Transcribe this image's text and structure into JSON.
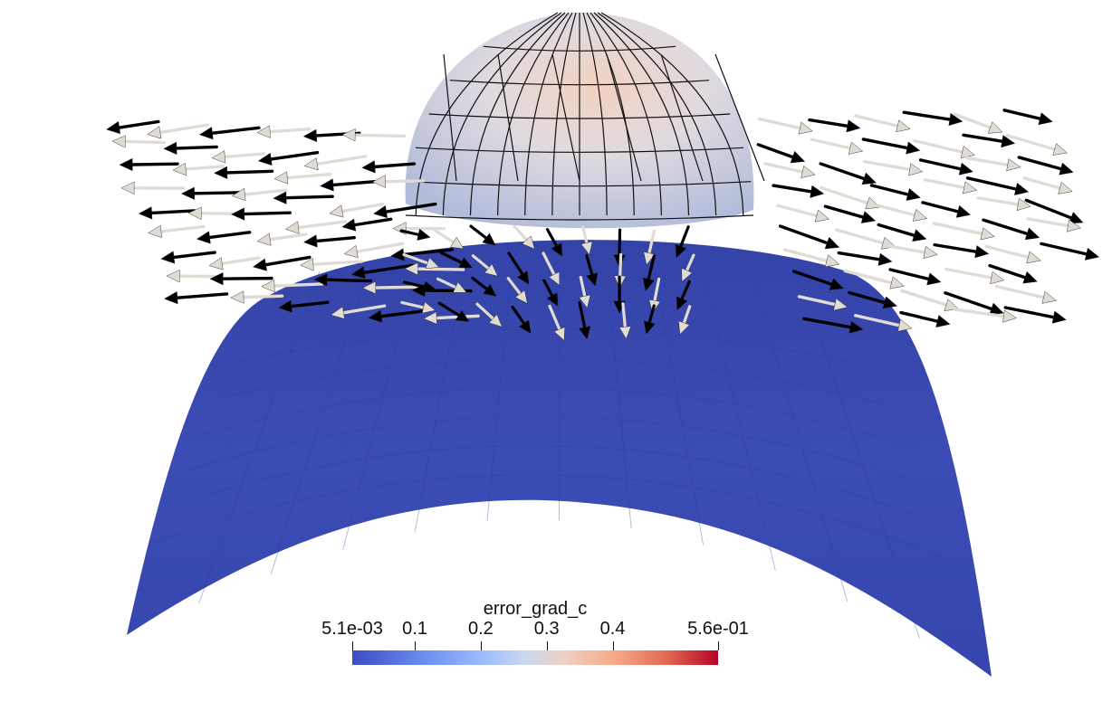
{
  "scene": {
    "surface_color": "#3b4aae",
    "sphere_mesh_color": "#000000",
    "glyph_colors": [
      "#000000",
      "#e0dcd4"
    ]
  },
  "colorbar": {
    "title": "error_grad_c",
    "range": [
      0.0051,
      0.56
    ],
    "ticks": [
      {
        "label": "5.1e-03",
        "value": 0.0051
      },
      {
        "label": "0.1",
        "value": 0.1
      },
      {
        "label": "0.2",
        "value": 0.2
      },
      {
        "label": "0.3",
        "value": 0.3
      },
      {
        "label": "0.4",
        "value": 0.4
      },
      {
        "label": "5.6e-01",
        "value": 0.56
      }
    ],
    "colormap": "cool-to-warm",
    "colormap_colors": [
      "#3b4cc0",
      "#9abbff",
      "#dddddd",
      "#f7a889",
      "#b40426"
    ]
  }
}
